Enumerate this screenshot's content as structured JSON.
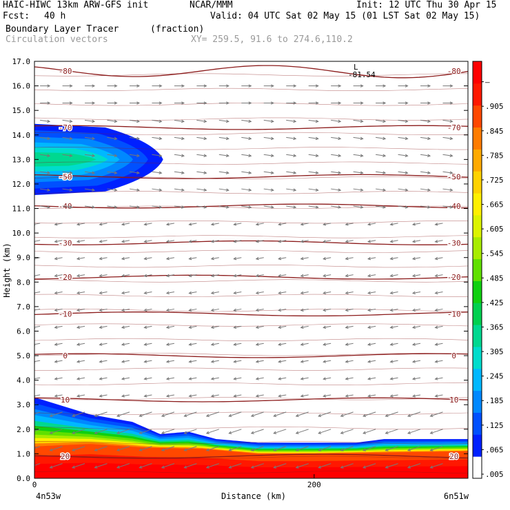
{
  "header": {
    "model": "HAIC-HIWC 13km ARW-GFS init",
    "org": "NCAR/MMM",
    "init": "Init: 12 UTC Thu 30 Apr 15",
    "fcst_label": "Fcst:",
    "fcst_value": "40 h",
    "valid": "Valid: 04 UTC Sat 02 May 15 (01 LST Sat 02 May 15)",
    "field_name": "Boundary Layer Tracer",
    "field_units": "(fraction)",
    "overlay_name": "Circulation vectors",
    "xy_range": "XY= 259.5, 91.6 to 274.6,110.2"
  },
  "chart_data": {
    "type": "area",
    "title": "Boundary Layer Tracer",
    "xlabel": "Distance (km)",
    "ylabel": "Height (km)",
    "xlim": [
      0,
      310
    ],
    "ylim": [
      0,
      17
    ],
    "x_ticks": [
      "0",
      "200"
    ],
    "x_tick_values": [
      0,
      200
    ],
    "x_end_labels": [
      "4n53w",
      "6n51w"
    ],
    "y_ticks": [
      "0.0",
      "1.0",
      "2.0",
      "3.0",
      "4.0",
      "5.0",
      "6.0",
      "7.0",
      "8.0",
      "9.0",
      "10.0",
      "11.0",
      "12.0",
      "13.0",
      "14.0",
      "15.0",
      "16.0",
      "17.0"
    ],
    "tracer_shading": {
      "surface_layer_top_km": [
        [
          0,
          1.3
        ],
        [
          40,
          1.4
        ],
        [
          80,
          1.25
        ],
        [
          120,
          1.2
        ],
        [
          160,
          1.0
        ],
        [
          200,
          1.0
        ],
        [
          250,
          1.05
        ],
        [
          310,
          1.1
        ]
      ],
      "mixed_layer_top_km": [
        [
          0,
          3.3
        ],
        [
          40,
          2.6
        ],
        [
          70,
          2.3
        ],
        [
          90,
          1.8
        ],
        [
          110,
          1.9
        ],
        [
          130,
          1.6
        ],
        [
          150,
          1.5
        ],
        [
          160,
          1.45
        ],
        [
          230,
          1.45
        ],
        [
          250,
          1.6
        ],
        [
          310,
          1.6
        ]
      ],
      "upper_plume": {
        "x_range_km": [
          0,
          92
        ],
        "bottom_km": 11.6,
        "top_km": 14.5,
        "core_km": 13.0,
        "peak_value": 0.305
      }
    },
    "temperature_contours_C": [
      {
        "label": "-80",
        "height_km": 16.6
      },
      {
        "label": "-70",
        "height_km": 14.3
      },
      {
        "label": "-50",
        "height_km": 12.3
      },
      {
        "label": "-40",
        "height_km": 11.1
      },
      {
        "label": "-30",
        "height_km": 9.6
      },
      {
        "label": "-20",
        "height_km": 8.2
      },
      {
        "label": "-10",
        "height_km": 6.7
      },
      {
        "label": "0",
        "height_km": 5.0
      },
      {
        "label": "10",
        "height_km": 3.2
      },
      {
        "label": "20",
        "height_km": 0.9
      }
    ],
    "temperature_min_label": "-81.54",
    "low_marker": "L",
    "circulation_vectors": {
      "upper_direction": "eastward",
      "upper_layer_km": [
        11,
        17
      ],
      "lower_direction": "westward",
      "lower_layer_km": [
        0,
        11
      ]
    },
    "colorbar": {
      "labels": [
        ".005",
        ".065",
        ".125",
        ".185",
        ".245",
        ".305",
        ".365",
        ".425",
        ".485",
        ".545",
        ".605",
        ".665",
        ".725",
        ".785",
        ".845",
        ".905",
        "–"
      ],
      "colors": [
        "#ffffff",
        "#0020ff",
        "#0050ff",
        "#0088ff",
        "#00b8ff",
        "#00dccc",
        "#00d890",
        "#00d050",
        "#10d010",
        "#60e000",
        "#a8ec00",
        "#dcf400",
        "#fff000",
        "#ffd200",
        "#ffaa00",
        "#ff7c00",
        "#ff4800",
        "#ff1800",
        "#ff0000"
      ]
    }
  }
}
